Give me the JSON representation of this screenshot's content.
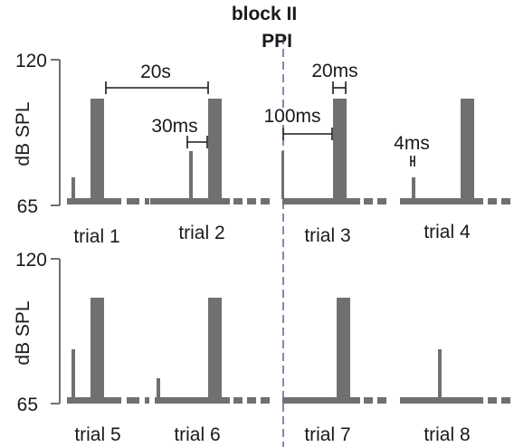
{
  "header": {
    "block_label": "block II",
    "condition_label": "PPI"
  },
  "axis": {
    "ylabel": "dB SPL",
    "ymin_label": "65",
    "ymax_label": "120"
  },
  "trials_top": [
    "trial 1",
    "trial 2",
    "trial 3",
    "trial 4"
  ],
  "trials_bottom": [
    "trial 5",
    "trial 6",
    "trial 7",
    "trial 8"
  ],
  "annotations": {
    "isi": "20s",
    "prepulse_pulse_interval": "30ms",
    "pulse_duration": "20ms",
    "lead_interval": "100ms",
    "prepulse_duration": "4ms"
  },
  "colors": {
    "signal": "#707070",
    "divider": "#303a80",
    "text": "#1a1a1a"
  }
}
